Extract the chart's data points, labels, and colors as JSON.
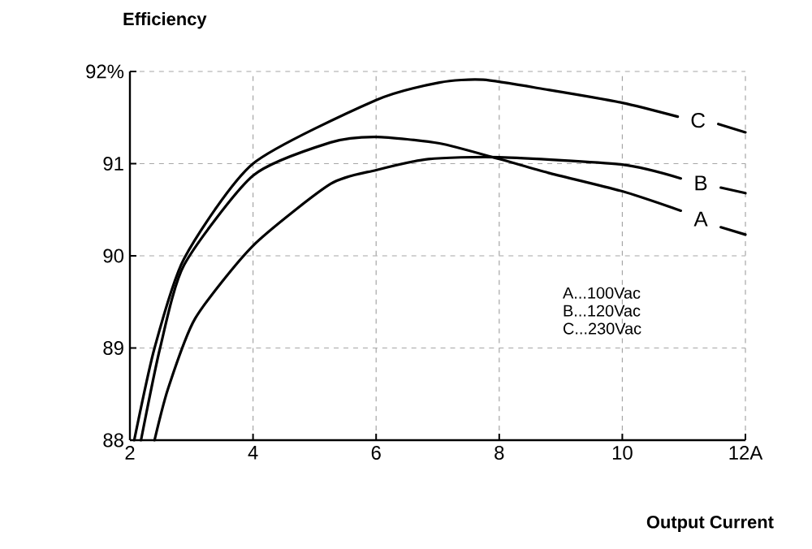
{
  "chart_data": {
    "type": "line",
    "xlabel": "Output Current",
    "ylabel": "Efficiency",
    "xlim": [
      2,
      12
    ],
    "ylim": [
      88,
      92
    ],
    "xticks": [
      2,
      4,
      6,
      8,
      10,
      {
        "value": 12,
        "label": "12A"
      }
    ],
    "yticks": [
      88,
      89,
      90,
      91,
      {
        "value": 92,
        "label": "92%"
      }
    ],
    "grid": true,
    "line_style": "solid",
    "marker": "none",
    "series": [
      {
        "name": "A",
        "color": "#000000",
        "x": [
          2.18,
          2.49,
          2.88,
          4,
          5.26,
          6,
          7.03,
          8,
          8.8,
          10,
          10.95,
          11.2,
          11.6,
          12
        ],
        "values": [
          88,
          89,
          89.9,
          90.87,
          91.23,
          91.29,
          91.22,
          91.05,
          90.9,
          90.7,
          90.49,
          null,
          90.31,
          90.23
        ]
      },
      {
        "name": "B",
        "color": "#000000",
        "x": [
          2.4,
          2.62,
          3.06,
          4,
          5.26,
          6,
          6.85,
          8,
          10,
          10.95,
          11.2,
          11.6,
          12
        ],
        "values": [
          88,
          88.56,
          89.32,
          90.11,
          90.78,
          90.93,
          91.05,
          91.07,
          90.99,
          90.84,
          null,
          90.74,
          90.68
        ]
      },
      {
        "name": "C",
        "color": "#000000",
        "x": [
          2.07,
          2.4,
          2.88,
          4,
          6,
          7.03,
          7.74,
          8.8,
          10,
          10.9,
          11.2,
          11.56,
          12
        ],
        "values": [
          88,
          89,
          89.97,
          91.0,
          91.69,
          91.88,
          91.91,
          91.8,
          91.66,
          91.51,
          null,
          91.43,
          91.34
        ]
      }
    ],
    "annotations": [
      "A...100Vac",
      "B...120Vac",
      "C...230Vac"
    ]
  }
}
